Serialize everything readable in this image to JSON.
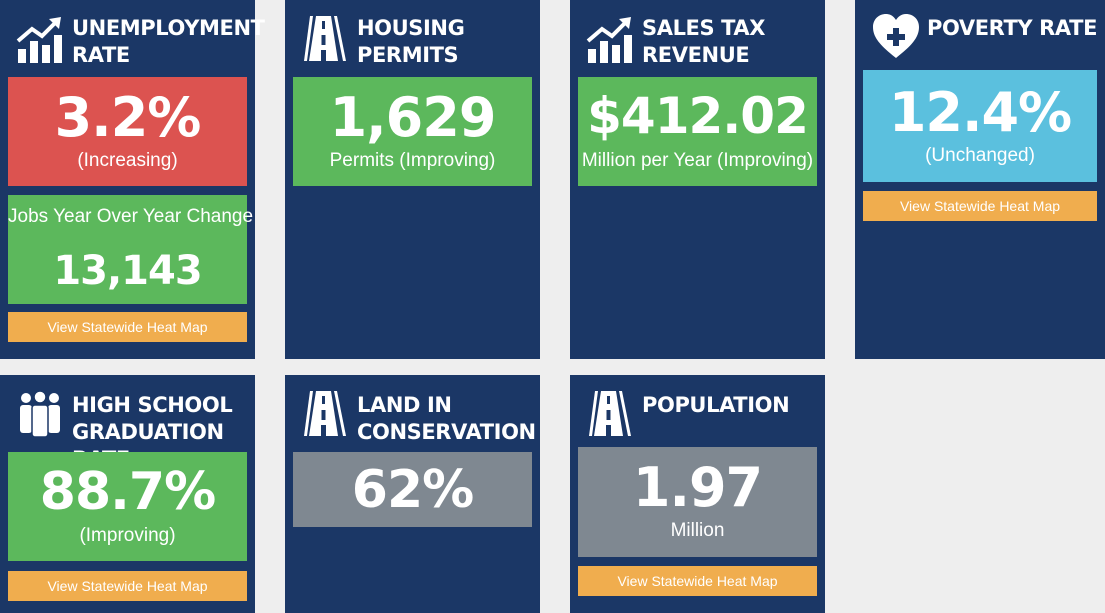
{
  "cards": {
    "unemployment": {
      "title": "Unemployment\nRate",
      "icon": "chart-growth-icon",
      "value": "3.2%",
      "sub": "(Increasing)",
      "jobs_label": "Jobs Year Over Year Change",
      "jobs_value": "13,143",
      "button": "View Statewide Heat Map"
    },
    "housing": {
      "title": "Housing\nPermits",
      "icon": "road-icon",
      "value": "1,629",
      "sub": "Permits (Improving)"
    },
    "sales_tax": {
      "title": "Sales Tax\nRevenue",
      "icon": "chart-growth-icon",
      "value": "$412.02",
      "sub": "Million per Year (Improving)"
    },
    "poverty": {
      "title": "Poverty Rate",
      "icon": "heart-plus-icon",
      "value": "12.4%",
      "sub": "(Unchanged)",
      "button": "View Statewide Heat Map"
    },
    "graduation": {
      "title": "High School\nGraduation Rate",
      "icon": "people-group-icon",
      "value": "88.7%",
      "sub": "(Improving)",
      "button": "View Statewide Heat Map"
    },
    "conservation": {
      "title": "Land In\nConservation",
      "icon": "road-icon",
      "value": "62%"
    },
    "population": {
      "title": "Population",
      "icon": "road-icon",
      "value": "1.97",
      "sub": "Million",
      "button": "View Statewide Heat Map"
    }
  },
  "colors": {
    "card": "#1b3766",
    "red": "#dc5350",
    "green": "#5cb85c",
    "blue": "#5bc0de",
    "gray": "#7f8891",
    "button": "#f0ad4e",
    "page": "#eeeeee"
  }
}
